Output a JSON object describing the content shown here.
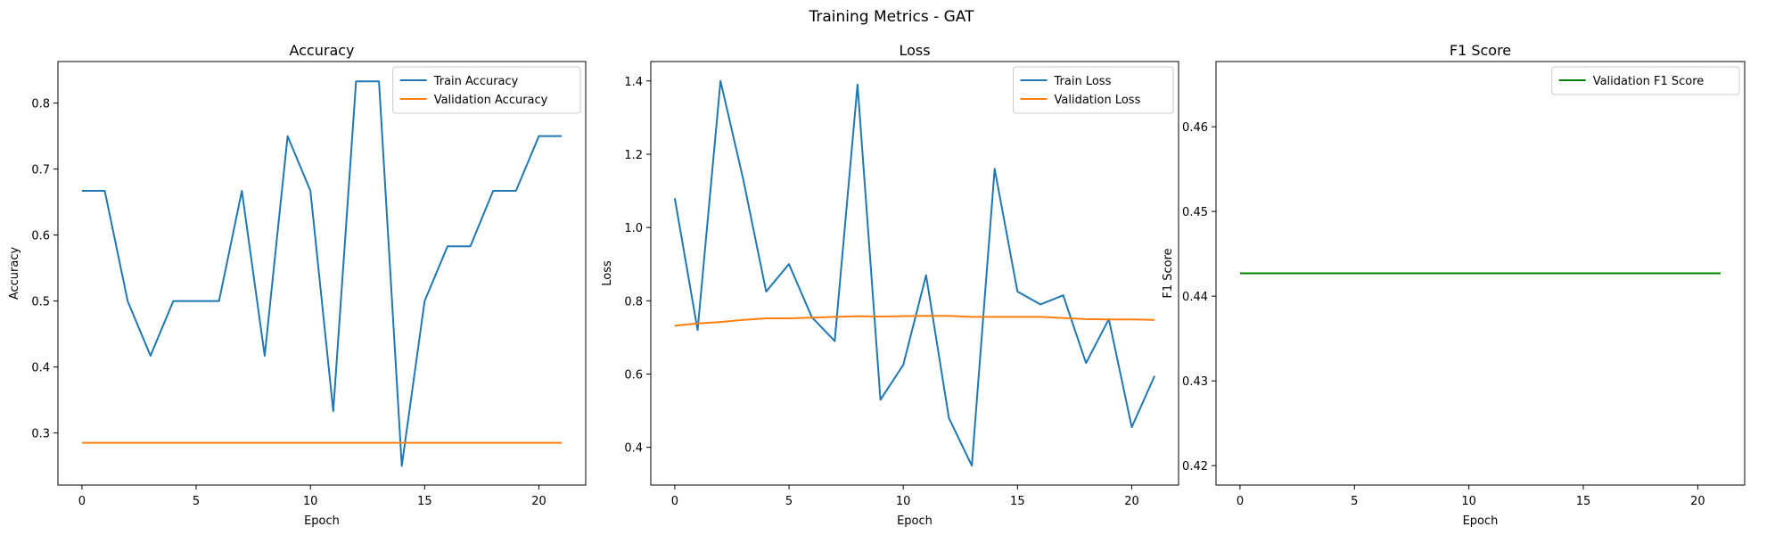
{
  "figure": {
    "title": "Training Metrics - GAT"
  },
  "chart_data": [
    {
      "type": "line",
      "title": "Accuracy",
      "xlabel": "Epoch",
      "ylabel": "Accuracy",
      "xlim": [
        -1.05,
        22.05
      ],
      "ylim": [
        0.221,
        0.863
      ],
      "xticks": [
        0,
        5,
        10,
        15,
        20
      ],
      "yticks": [
        0.3,
        0.4,
        0.5,
        0.6,
        0.7,
        0.8
      ],
      "ytick_labels": [
        "0.3",
        "0.4",
        "0.5",
        "0.6",
        "0.7",
        "0.8"
      ],
      "grid": false,
      "legend_position": "upper right",
      "x": [
        0,
        1,
        2,
        3,
        4,
        5,
        6,
        7,
        8,
        9,
        10,
        11,
        12,
        13,
        14,
        15,
        16,
        17,
        18,
        19,
        20,
        21
      ],
      "series": [
        {
          "name": "Train Accuracy",
          "color": "#1f77b4",
          "values": [
            0.667,
            0.667,
            0.5,
            0.417,
            0.5,
            0.5,
            0.5,
            0.667,
            0.417,
            0.75,
            0.667,
            0.333,
            0.833,
            0.833,
            0.25,
            0.5,
            0.583,
            0.583,
            0.667,
            0.667,
            0.75,
            0.75
          ]
        },
        {
          "name": "Validation Accuracy",
          "color": "#ff7f0e",
          "values": [
            0.285,
            0.285,
            0.285,
            0.285,
            0.285,
            0.285,
            0.285,
            0.285,
            0.285,
            0.285,
            0.285,
            0.285,
            0.285,
            0.285,
            0.285,
            0.285,
            0.285,
            0.285,
            0.285,
            0.285,
            0.285,
            0.285
          ]
        }
      ]
    },
    {
      "type": "line",
      "title": "Loss",
      "xlabel": "Epoch",
      "ylabel": "Loss",
      "xlim": [
        -1.05,
        22.05
      ],
      "ylim": [
        0.297,
        1.453
      ],
      "xticks": [
        0,
        5,
        10,
        15,
        20
      ],
      "yticks": [
        0.4,
        0.6,
        0.8,
        1.0,
        1.2,
        1.4
      ],
      "ytick_labels": [
        "0.4",
        "0.6",
        "0.8",
        "1.0",
        "1.2",
        "1.4"
      ],
      "grid": false,
      "legend_position": "upper right",
      "x": [
        0,
        1,
        2,
        3,
        4,
        5,
        6,
        7,
        8,
        9,
        10,
        11,
        12,
        13,
        14,
        15,
        16,
        17,
        18,
        19,
        20,
        21
      ],
      "series": [
        {
          "name": "Train Loss",
          "color": "#1f77b4",
          "values": [
            1.08,
            0.72,
            1.4,
            1.13,
            0.825,
            0.9,
            0.755,
            0.69,
            1.39,
            0.53,
            0.625,
            0.87,
            0.48,
            0.35,
            1.16,
            0.825,
            0.79,
            0.815,
            0.63,
            0.75,
            0.455,
            0.595
          ]
        },
        {
          "name": "Validation Loss",
          "color": "#ff7f0e",
          "values": [
            0.732,
            0.738,
            0.742,
            0.748,
            0.752,
            0.752,
            0.754,
            0.756,
            0.758,
            0.757,
            0.758,
            0.759,
            0.759,
            0.756,
            0.756,
            0.756,
            0.756,
            0.753,
            0.75,
            0.749,
            0.749,
            0.748
          ]
        }
      ]
    },
    {
      "type": "line",
      "title": "F1 Score",
      "xlabel": "Epoch",
      "ylabel": "F1 Score",
      "xlim": [
        -1.05,
        22.05
      ],
      "ylim": [
        0.4177,
        0.4677
      ],
      "xticks": [
        0,
        5,
        10,
        15,
        20
      ],
      "yticks": [
        0.42,
        0.43,
        0.44,
        0.45,
        0.46
      ],
      "ytick_labels": [
        "0.42",
        "0.43",
        "0.44",
        "0.45",
        "0.46"
      ],
      "grid": false,
      "legend_position": "upper right",
      "x": [
        0,
        1,
        2,
        3,
        4,
        5,
        6,
        7,
        8,
        9,
        10,
        11,
        12,
        13,
        14,
        15,
        16,
        17,
        18,
        19,
        20,
        21
      ],
      "series": [
        {
          "name": "Validation F1 Score",
          "color": "#008000",
          "values": [
            0.4427,
            0.4427,
            0.4427,
            0.4427,
            0.4427,
            0.4427,
            0.4427,
            0.4427,
            0.4427,
            0.4427,
            0.4427,
            0.4427,
            0.4427,
            0.4427,
            0.4427,
            0.4427,
            0.4427,
            0.4427,
            0.4427,
            0.4427,
            0.4427,
            0.4427
          ]
        }
      ]
    }
  ]
}
